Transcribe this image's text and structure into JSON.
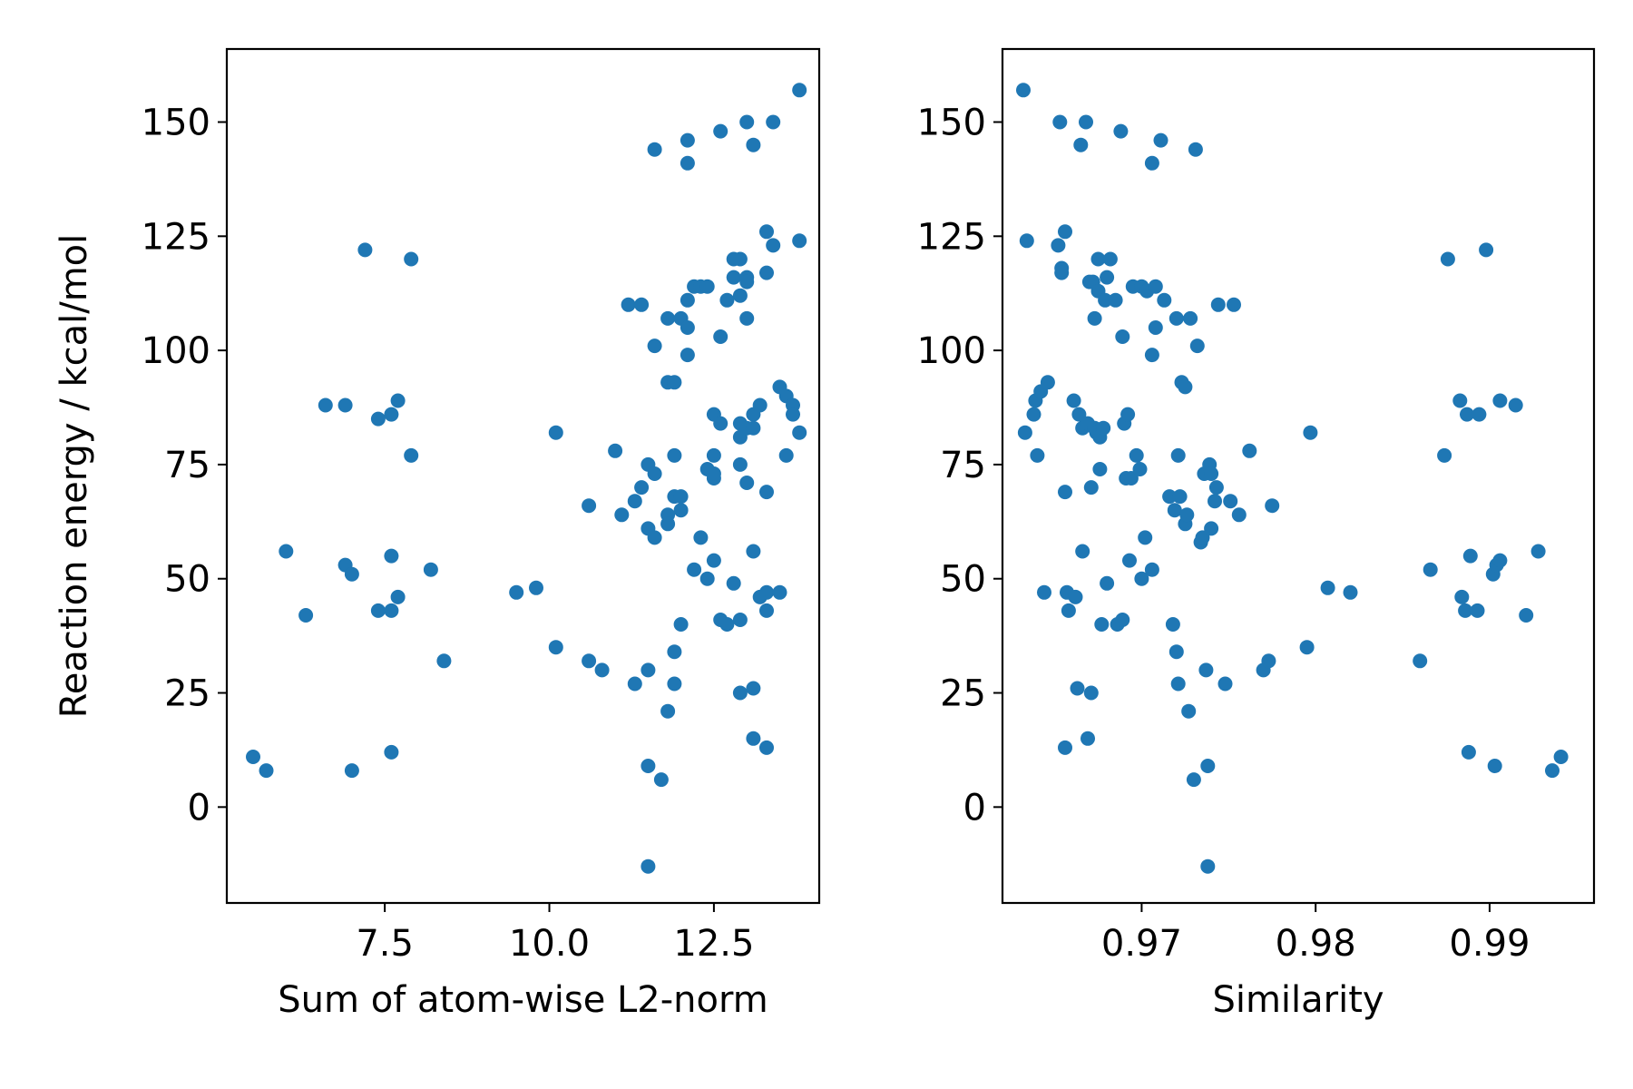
{
  "chart_data": [
    {
      "type": "scatter",
      "xlabel": "Sum of atom-wise L2-norm",
      "ylabel": "Reaction energy / kcal/mol",
      "xlim": [
        5.1,
        14.1
      ],
      "ylim": [
        -21,
        166
      ],
      "xticks": [
        "7.5",
        "10.0",
        "12.5"
      ],
      "yticks": [
        "0",
        "25",
        "50",
        "75",
        "100",
        "125",
        "150"
      ],
      "grid": false,
      "marker_color": "#1f77b4",
      "points": [
        [
          5.5,
          11
        ],
        [
          5.7,
          8
        ],
        [
          6.0,
          56
        ],
        [
          6.3,
          42
        ],
        [
          6.6,
          88
        ],
        [
          6.9,
          88
        ],
        [
          6.9,
          53
        ],
        [
          7.0,
          51
        ],
        [
          7.0,
          8
        ],
        [
          7.2,
          122
        ],
        [
          7.4,
          43
        ],
        [
          7.4,
          85
        ],
        [
          7.6,
          86
        ],
        [
          7.6,
          55
        ],
        [
          7.6,
          12
        ],
        [
          7.6,
          43
        ],
        [
          7.7,
          89
        ],
        [
          7.7,
          46
        ],
        [
          7.9,
          120
        ],
        [
          7.9,
          77
        ],
        [
          8.2,
          52
        ],
        [
          8.4,
          32
        ],
        [
          9.5,
          47
        ],
        [
          9.8,
          48
        ],
        [
          10.1,
          82
        ],
        [
          10.1,
          35
        ],
        [
          10.6,
          66
        ],
        [
          10.6,
          32
        ],
        [
          10.8,
          30
        ],
        [
          11.0,
          78
        ],
        [
          11.1,
          64
        ],
        [
          11.2,
          110
        ],
        [
          11.3,
          67
        ],
        [
          11.3,
          27
        ],
        [
          11.4,
          110
        ],
        [
          11.4,
          70
        ],
        [
          11.5,
          75
        ],
        [
          11.5,
          61
        ],
        [
          11.5,
          30
        ],
        [
          11.5,
          9
        ],
        [
          11.5,
          -13
        ],
        [
          11.6,
          144
        ],
        [
          11.6,
          73
        ],
        [
          11.6,
          59
        ],
        [
          11.6,
          101
        ],
        [
          11.7,
          6
        ],
        [
          11.8,
          107
        ],
        [
          11.8,
          64
        ],
        [
          11.8,
          62
        ],
        [
          11.8,
          93
        ],
        [
          11.8,
          21
        ],
        [
          11.9,
          93
        ],
        [
          11.9,
          68
        ],
        [
          11.9,
          77
        ],
        [
          11.9,
          34
        ],
        [
          11.9,
          27
        ],
        [
          12.0,
          107
        ],
        [
          12.0,
          65
        ],
        [
          12.0,
          40
        ],
        [
          12.0,
          68
        ],
        [
          12.1,
          111
        ],
        [
          12.1,
          146
        ],
        [
          12.1,
          141
        ],
        [
          12.1,
          105
        ],
        [
          12.1,
          99
        ],
        [
          12.2,
          114
        ],
        [
          12.2,
          52
        ],
        [
          12.3,
          59
        ],
        [
          12.3,
          114
        ],
        [
          12.4,
          50
        ],
        [
          12.4,
          114
        ],
        [
          12.4,
          74
        ],
        [
          12.5,
          77
        ],
        [
          12.5,
          72
        ],
        [
          12.5,
          54
        ],
        [
          12.5,
          86
        ],
        [
          12.5,
          73
        ],
        [
          12.6,
          84
        ],
        [
          12.6,
          148
        ],
        [
          12.6,
          103
        ],
        [
          12.6,
          41
        ],
        [
          12.7,
          40
        ],
        [
          12.7,
          111
        ],
        [
          12.8,
          120
        ],
        [
          12.8,
          116
        ],
        [
          12.8,
          49
        ],
        [
          12.9,
          112
        ],
        [
          12.9,
          120
        ],
        [
          12.9,
          75
        ],
        [
          12.9,
          84
        ],
        [
          12.9,
          81
        ],
        [
          12.9,
          41
        ],
        [
          12.9,
          25
        ],
        [
          13.0,
          116
        ],
        [
          13.0,
          107
        ],
        [
          13.0,
          83
        ],
        [
          13.0,
          71
        ],
        [
          13.0,
          115
        ],
        [
          13.0,
          150
        ],
        [
          13.1,
          145
        ],
        [
          13.1,
          86
        ],
        [
          13.1,
          83
        ],
        [
          13.1,
          56
        ],
        [
          13.1,
          15
        ],
        [
          13.1,
          26
        ],
        [
          13.2,
          88
        ],
        [
          13.2,
          46
        ],
        [
          13.3,
          43
        ],
        [
          13.3,
          126
        ],
        [
          13.3,
          117
        ],
        [
          13.3,
          69
        ],
        [
          13.3,
          13
        ],
        [
          13.3,
          47
        ],
        [
          13.4,
          123
        ],
        [
          13.4,
          150
        ],
        [
          13.5,
          92
        ],
        [
          13.5,
          47
        ],
        [
          13.6,
          90
        ],
        [
          13.6,
          77
        ],
        [
          13.7,
          88
        ],
        [
          13.7,
          86
        ],
        [
          13.8,
          124
        ],
        [
          13.8,
          82
        ],
        [
          13.8,
          157
        ]
      ]
    },
    {
      "type": "scatter",
      "xlabel": "Similarity",
      "ylabel": "",
      "xlim": [
        0.962,
        0.996
      ],
      "ylim": [
        -21,
        166
      ],
      "xticks": [
        "0.97",
        "0.98",
        "0.99"
      ],
      "yticks": [
        "0",
        "25",
        "50",
        "75",
        "100",
        "125",
        "150"
      ],
      "grid": false,
      "marker_color": "#1f77b4",
      "points": [
        [
          0.9632,
          157
        ],
        [
          0.9634,
          124
        ],
        [
          0.9633,
          82
        ],
        [
          0.9638,
          86
        ],
        [
          0.9639,
          89
        ],
        [
          0.9642,
          91
        ],
        [
          0.964,
          77
        ],
        [
          0.9644,
          47
        ],
        [
          0.9646,
          93
        ],
        [
          0.9652,
          123
        ],
        [
          0.9653,
          150
        ],
        [
          0.9654,
          118
        ],
        [
          0.9654,
          117
        ],
        [
          0.9656,
          126
        ],
        [
          0.9656,
          69
        ],
        [
          0.9656,
          13
        ],
        [
          0.9657,
          47
        ],
        [
          0.9658,
          43
        ],
        [
          0.9661,
          89
        ],
        [
          0.9662,
          46
        ],
        [
          0.9663,
          26
        ],
        [
          0.9664,
          86
        ],
        [
          0.9665,
          145
        ],
        [
          0.9666,
          83
        ],
        [
          0.9666,
          56
        ],
        [
          0.9668,
          150
        ],
        [
          0.9669,
          84
        ],
        [
          0.9669,
          15
        ],
        [
          0.967,
          115
        ],
        [
          0.9671,
          70
        ],
        [
          0.9671,
          25
        ],
        [
          0.9672,
          115
        ],
        [
          0.9673,
          107
        ],
        [
          0.9673,
          83
        ],
        [
          0.9674,
          82
        ],
        [
          0.9675,
          120
        ],
        [
          0.9675,
          113
        ],
        [
          0.9676,
          81
        ],
        [
          0.9676,
          74
        ],
        [
          0.9677,
          40
        ],
        [
          0.9678,
          83
        ],
        [
          0.9679,
          111
        ],
        [
          0.968,
          116
        ],
        [
          0.968,
          49
        ],
        [
          0.9682,
          120
        ],
        [
          0.9685,
          111
        ],
        [
          0.9686,
          40
        ],
        [
          0.9688,
          148
        ],
        [
          0.9689,
          103
        ],
        [
          0.9689,
          41
        ],
        [
          0.969,
          84
        ],
        [
          0.9691,
          72
        ],
        [
          0.9692,
          86
        ],
        [
          0.9693,
          54
        ],
        [
          0.9694,
          72
        ],
        [
          0.9695,
          114
        ],
        [
          0.9697,
          77
        ],
        [
          0.9699,
          74
        ],
        [
          0.97,
          114
        ],
        [
          0.97,
          50
        ],
        [
          0.9702,
          59
        ],
        [
          0.9703,
          113
        ],
        [
          0.9706,
          141
        ],
        [
          0.9706,
          99
        ],
        [
          0.9706,
          52
        ],
        [
          0.9708,
          114
        ],
        [
          0.9708,
          105
        ],
        [
          0.9711,
          146
        ],
        [
          0.9713,
          111
        ],
        [
          0.9716,
          68
        ],
        [
          0.9718,
          40
        ],
        [
          0.9719,
          65
        ],
        [
          0.972,
          107
        ],
        [
          0.972,
          34
        ],
        [
          0.9721,
          27
        ],
        [
          0.9721,
          77
        ],
        [
          0.9722,
          68
        ],
        [
          0.9723,
          93
        ],
        [
          0.9725,
          92
        ],
        [
          0.9725,
          62
        ],
        [
          0.9726,
          64
        ],
        [
          0.9727,
          21
        ],
        [
          0.9728,
          107
        ],
        [
          0.973,
          6
        ],
        [
          0.9731,
          144
        ],
        [
          0.9732,
          101
        ],
        [
          0.9734,
          58
        ],
        [
          0.9735,
          59
        ],
        [
          0.9736,
          73
        ],
        [
          0.9737,
          30
        ],
        [
          0.9738,
          9
        ],
        [
          0.9738,
          -13
        ],
        [
          0.9739,
          75
        ],
        [
          0.974,
          61
        ],
        [
          0.974,
          73
        ],
        [
          0.9742,
          67
        ],
        [
          0.9743,
          70
        ],
        [
          0.9744,
          110
        ],
        [
          0.9748,
          27
        ],
        [
          0.9751,
          67
        ],
        [
          0.9753,
          110
        ],
        [
          0.9756,
          64
        ],
        [
          0.9762,
          78
        ],
        [
          0.977,
          30
        ],
        [
          0.9773,
          32
        ],
        [
          0.9775,
          66
        ],
        [
          0.9795,
          35
        ],
        [
          0.9797,
          82
        ],
        [
          0.9807,
          48
        ],
        [
          0.982,
          47
        ],
        [
          0.986,
          32
        ],
        [
          0.9866,
          52
        ],
        [
          0.9874,
          77
        ],
        [
          0.9876,
          120
        ],
        [
          0.9883,
          89
        ],
        [
          0.9884,
          46
        ],
        [
          0.9886,
          43
        ],
        [
          0.9887,
          86
        ],
        [
          0.9888,
          12
        ],
        [
          0.9889,
          55
        ],
        [
          0.9893,
          43
        ],
        [
          0.9894,
          86
        ],
        [
          0.9898,
          122
        ],
        [
          0.9902,
          51
        ],
        [
          0.9903,
          9
        ],
        [
          0.9904,
          53
        ],
        [
          0.9906,
          54
        ],
        [
          0.9906,
          89
        ],
        [
          0.9915,
          88
        ],
        [
          0.9921,
          42
        ],
        [
          0.9928,
          56
        ],
        [
          0.9936,
          8
        ],
        [
          0.9941,
          11
        ]
      ]
    }
  ]
}
